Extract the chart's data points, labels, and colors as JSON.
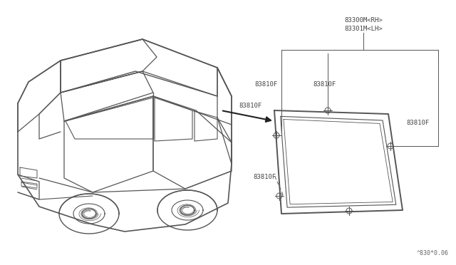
{
  "bg_color": "#ffffff",
  "line_color": "#555555",
  "text_color": "#444444",
  "watermark": "^830*0.06",
  "label_main1": "83300M<RH>",
  "label_main2": "83301M<LH>",
  "label_clip": "83810F",
  "car_label": "83810F",
  "figsize": [
    6.4,
    3.72
  ],
  "dpi": 100
}
